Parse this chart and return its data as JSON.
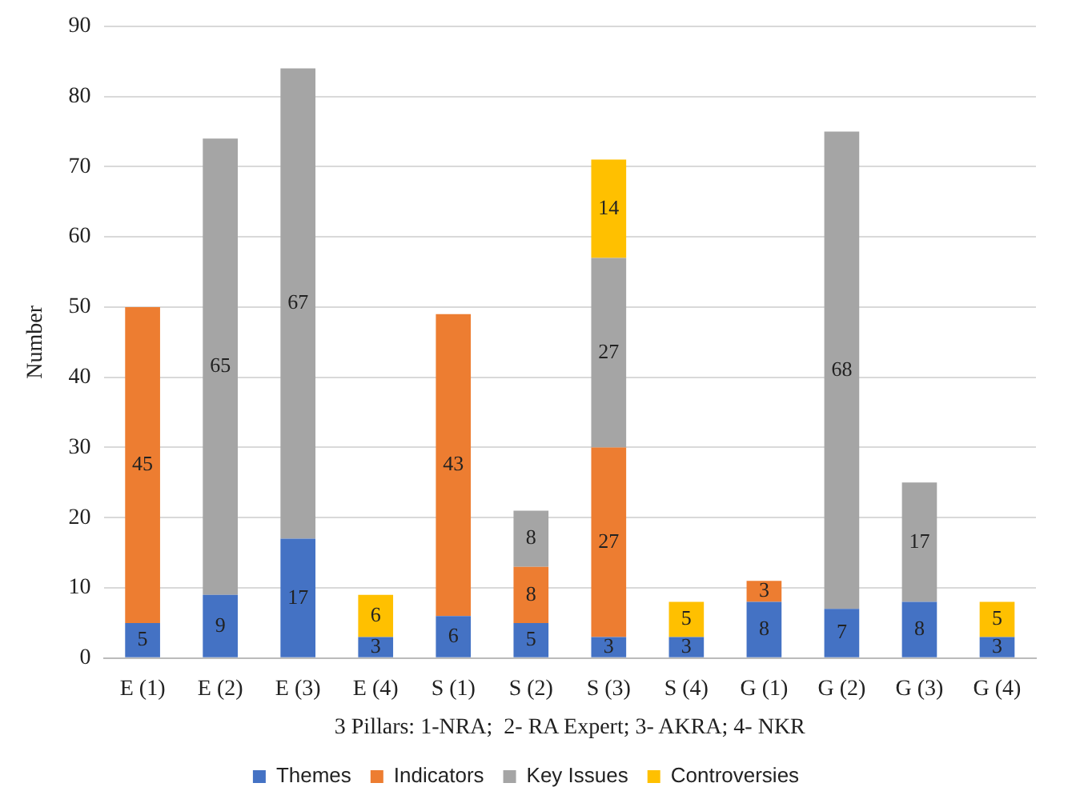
{
  "chart_data": {
    "type": "bar",
    "stacked": true,
    "ylabel": "Number",
    "xlabel": "3 Pillars: 1-NRA;  2- RA Expert; 3- AKRA; 4- NKR",
    "categories": [
      "E (1)",
      "E (2)",
      "E (3)",
      "E (4)",
      "S (1)",
      "S (2)",
      "S (3)",
      "S (4)",
      "G (1)",
      "G (2)",
      "G (3)",
      "G (4)"
    ],
    "series": [
      {
        "name": "Themes",
        "color": "#4472c4",
        "values": [
          5,
          9,
          17,
          3,
          6,
          5,
          3,
          3,
          8,
          7,
          8,
          3
        ]
      },
      {
        "name": "Indicators",
        "color": "#ed7d31",
        "values": [
          45,
          null,
          null,
          null,
          43,
          8,
          27,
          null,
          3,
          null,
          null,
          null
        ]
      },
      {
        "name": "Key Issues",
        "color": "#a5a5a5",
        "values": [
          null,
          65,
          67,
          null,
          null,
          8,
          27,
          null,
          null,
          68,
          17,
          null
        ]
      },
      {
        "name": "Controversies",
        "color": "#ffc000",
        "values": [
          null,
          null,
          null,
          6,
          null,
          null,
          14,
          5,
          null,
          null,
          null,
          5
        ]
      }
    ],
    "ylim": [
      0,
      90
    ],
    "yticks": [
      0,
      10,
      20,
      30,
      40,
      50,
      60,
      70,
      80,
      90
    ],
    "grid": "y",
    "legend": "bottom",
    "data_labels": true
  }
}
